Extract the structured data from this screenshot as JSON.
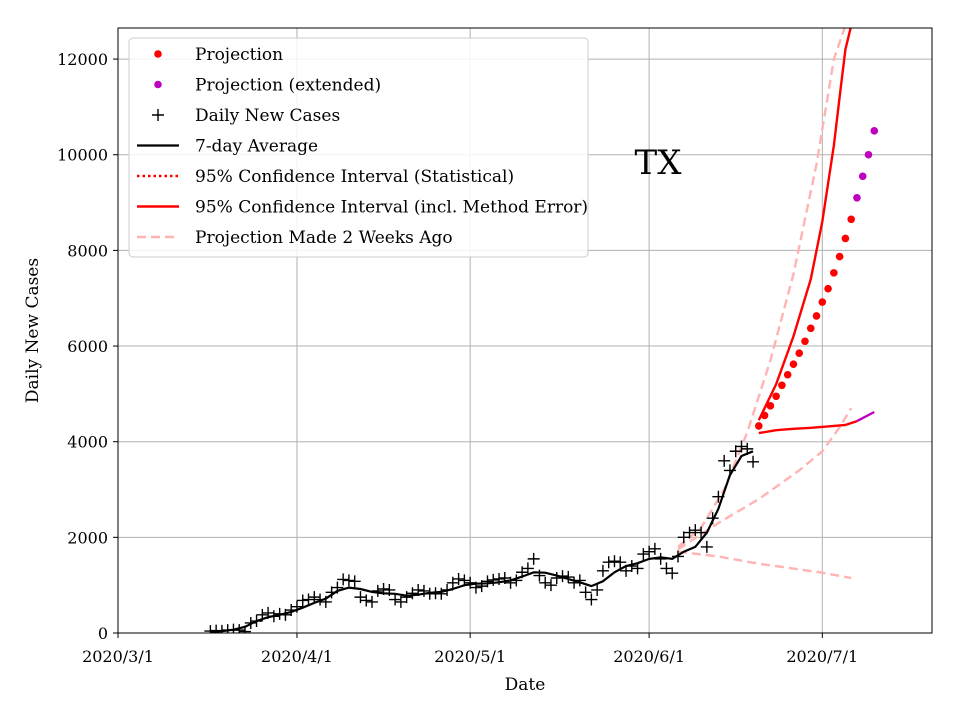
{
  "chart_data": {
    "type": "line",
    "annotation": "TX",
    "xlabel": "Date",
    "ylabel": "Daily New Cases",
    "x_ticks": [
      "2020/3/1",
      "2020/4/1",
      "2020/5/1",
      "2020/6/1",
      "2020/7/1"
    ],
    "y_ticks": [
      0,
      2000,
      4000,
      6000,
      8000,
      10000,
      12000
    ],
    "xlim": [
      "2020-03-01",
      "2020-07-20"
    ],
    "ylim": [
      0,
      12650
    ],
    "grid": true,
    "legend_position": "top-left",
    "legend": [
      {
        "label": "Projection",
        "style": "red-dot"
      },
      {
        "label": "Projection (extended)",
        "style": "magenta-dot"
      },
      {
        "label": "Daily New Cases",
        "style": "black-plus"
      },
      {
        "label": "7-day Average",
        "style": "black-line"
      },
      {
        "label": "95% Confidence Interval (Statistical)",
        "style": "red-dotted"
      },
      {
        "label": "95% Confidence Interval (incl. Method Error)",
        "style": "red-solid"
      },
      {
        "label": "Projection Made 2 Weeks Ago",
        "style": "pink-dashed"
      }
    ],
    "colors": {
      "projection": "#ff0000",
      "projection_extended": "#bf00bf",
      "daily": "#000000",
      "average": "#000000",
      "ci": "#ff0000",
      "old_projection": "#ffb3b3"
    },
    "series": [
      {
        "name": "Daily New Cases",
        "points": [
          [
            "2020-03-17",
            40
          ],
          [
            "2020-03-18",
            50
          ],
          [
            "2020-03-19",
            45
          ],
          [
            "2020-03-20",
            60
          ],
          [
            "2020-03-21",
            70
          ],
          [
            "2020-03-22",
            60
          ],
          [
            "2020-03-23",
            30
          ],
          [
            "2020-03-24",
            210
          ],
          [
            "2020-03-25",
            250
          ],
          [
            "2020-03-26",
            380
          ],
          [
            "2020-03-27",
            420
          ],
          [
            "2020-03-28",
            350
          ],
          [
            "2020-03-29",
            400
          ],
          [
            "2020-03-30",
            380
          ],
          [
            "2020-03-31",
            480
          ],
          [
            "2020-04-01",
            550
          ],
          [
            "2020-04-02",
            680
          ],
          [
            "2020-04-03",
            700
          ],
          [
            "2020-04-04",
            750
          ],
          [
            "2020-04-05",
            700
          ],
          [
            "2020-04-06",
            650
          ],
          [
            "2020-04-07",
            850
          ],
          [
            "2020-04-08",
            950
          ],
          [
            "2020-04-09",
            1120
          ],
          [
            "2020-04-10",
            1100
          ],
          [
            "2020-04-11",
            1080
          ],
          [
            "2020-04-12",
            750
          ],
          [
            "2020-04-13",
            680
          ],
          [
            "2020-04-14",
            650
          ],
          [
            "2020-04-15",
            880
          ],
          [
            "2020-04-16",
            920
          ],
          [
            "2020-04-17",
            900
          ],
          [
            "2020-04-18",
            700
          ],
          [
            "2020-04-19",
            650
          ],
          [
            "2020-04-20",
            750
          ],
          [
            "2020-04-21",
            830
          ],
          [
            "2020-04-22",
            900
          ],
          [
            "2020-04-23",
            880
          ],
          [
            "2020-04-24",
            820
          ],
          [
            "2020-04-25",
            830
          ],
          [
            "2020-04-26",
            820
          ],
          [
            "2020-04-27",
            900
          ],
          [
            "2020-04-28",
            1050
          ],
          [
            "2020-04-29",
            1130
          ],
          [
            "2020-04-30",
            1100
          ],
          [
            "2020-05-01",
            1050
          ],
          [
            "2020-05-02",
            950
          ],
          [
            "2020-05-03",
            980
          ],
          [
            "2020-05-04",
            1080
          ],
          [
            "2020-05-05",
            1110
          ],
          [
            "2020-05-06",
            1130
          ],
          [
            "2020-05-07",
            1150
          ],
          [
            "2020-05-08",
            1050
          ],
          [
            "2020-05-09",
            1100
          ],
          [
            "2020-05-10",
            1270
          ],
          [
            "2020-05-11",
            1350
          ],
          [
            "2020-05-12",
            1550
          ],
          [
            "2020-05-13",
            1200
          ],
          [
            "2020-05-14",
            1050
          ],
          [
            "2020-05-15",
            1000
          ],
          [
            "2020-05-16",
            1150
          ],
          [
            "2020-05-17",
            1190
          ],
          [
            "2020-05-18",
            1170
          ],
          [
            "2020-05-19",
            1050
          ],
          [
            "2020-05-20",
            1100
          ],
          [
            "2020-05-21",
            850
          ],
          [
            "2020-05-22",
            700
          ],
          [
            "2020-05-23",
            900
          ],
          [
            "2020-05-24",
            1300
          ],
          [
            "2020-05-25",
            1480
          ],
          [
            "2020-05-26",
            1500
          ],
          [
            "2020-05-27",
            1480
          ],
          [
            "2020-05-28",
            1300
          ],
          [
            "2020-05-29",
            1400
          ],
          [
            "2020-05-30",
            1350
          ],
          [
            "2020-05-31",
            1650
          ],
          [
            "2020-06-01",
            1700
          ],
          [
            "2020-06-02",
            1760
          ],
          [
            "2020-06-03",
            1550
          ],
          [
            "2020-06-04",
            1350
          ],
          [
            "2020-06-05",
            1250
          ],
          [
            "2020-06-06",
            1600
          ],
          [
            "2020-06-07",
            2000
          ],
          [
            "2020-06-08",
            2100
          ],
          [
            "2020-06-09",
            2150
          ],
          [
            "2020-06-10",
            2100
          ],
          [
            "2020-06-11",
            1800
          ],
          [
            "2020-06-12",
            2400
          ],
          [
            "2020-06-13",
            2850
          ],
          [
            "2020-06-14",
            3600
          ],
          [
            "2020-06-15",
            3400
          ],
          [
            "2020-06-16",
            3800
          ],
          [
            "2020-06-17",
            3900
          ],
          [
            "2020-06-18",
            3850
          ],
          [
            "2020-06-19",
            3580
          ]
        ]
      },
      {
        "name": "7-day Average",
        "points": [
          [
            "2020-03-17",
            20
          ],
          [
            "2020-03-19",
            40
          ],
          [
            "2020-03-21",
            70
          ],
          [
            "2020-03-23",
            130
          ],
          [
            "2020-03-25",
            250
          ],
          [
            "2020-03-27",
            330
          ],
          [
            "2020-03-29",
            380
          ],
          [
            "2020-03-31",
            440
          ],
          [
            "2020-04-02",
            530
          ],
          [
            "2020-04-04",
            630
          ],
          [
            "2020-04-06",
            720
          ],
          [
            "2020-04-08",
            880
          ],
          [
            "2020-04-10",
            950
          ],
          [
            "2020-04-12",
            920
          ],
          [
            "2020-04-14",
            860
          ],
          [
            "2020-04-16",
            830
          ],
          [
            "2020-04-18",
            820
          ],
          [
            "2020-04-20",
            780
          ],
          [
            "2020-04-22",
            800
          ],
          [
            "2020-04-24",
            840
          ],
          [
            "2020-04-26",
            860
          ],
          [
            "2020-04-28",
            920
          ],
          [
            "2020-04-30",
            1000
          ],
          [
            "2020-05-02",
            1030
          ],
          [
            "2020-05-04",
            1040
          ],
          [
            "2020-05-06",
            1060
          ],
          [
            "2020-05-08",
            1100
          ],
          [
            "2020-05-10",
            1180
          ],
          [
            "2020-05-12",
            1270
          ],
          [
            "2020-05-14",
            1260
          ],
          [
            "2020-05-16",
            1200
          ],
          [
            "2020-05-18",
            1130
          ],
          [
            "2020-05-20",
            1060
          ],
          [
            "2020-05-22",
            980
          ],
          [
            "2020-05-24",
            1080
          ],
          [
            "2020-05-26",
            1270
          ],
          [
            "2020-05-28",
            1400
          ],
          [
            "2020-05-30",
            1460
          ],
          [
            "2020-06-01",
            1550
          ],
          [
            "2020-06-03",
            1580
          ],
          [
            "2020-06-05",
            1550
          ],
          [
            "2020-06-07",
            1700
          ],
          [
            "2020-06-09",
            1800
          ],
          [
            "2020-06-11",
            2100
          ],
          [
            "2020-06-13",
            2600
          ],
          [
            "2020-06-15",
            3300
          ],
          [
            "2020-06-17",
            3700
          ],
          [
            "2020-06-19",
            3800
          ]
        ]
      },
      {
        "name": "Projection",
        "points": [
          [
            "2020-06-20",
            4330
          ],
          [
            "2020-06-21",
            4550
          ],
          [
            "2020-06-22",
            4750
          ],
          [
            "2020-06-23",
            4950
          ],
          [
            "2020-06-24",
            5180
          ],
          [
            "2020-06-25",
            5400
          ],
          [
            "2020-06-26",
            5620
          ],
          [
            "2020-06-27",
            5850
          ],
          [
            "2020-06-28",
            6100
          ],
          [
            "2020-06-29",
            6370
          ],
          [
            "2020-06-30",
            6630
          ],
          [
            "2020-07-01",
            6920
          ],
          [
            "2020-07-02",
            7200
          ],
          [
            "2020-07-03",
            7530
          ],
          [
            "2020-07-04",
            7870
          ],
          [
            "2020-07-05",
            8250
          ],
          [
            "2020-07-06",
            8650
          ]
        ]
      },
      {
        "name": "Projection (extended)",
        "points": [
          [
            "2020-07-07",
            9100
          ],
          [
            "2020-07-08",
            9550
          ],
          [
            "2020-07-09",
            10000
          ],
          [
            "2020-07-10",
            10500
          ]
        ]
      },
      {
        "name": "95% Confidence Interval (incl. Method Error) upper",
        "points": [
          [
            "2020-06-20",
            4450
          ],
          [
            "2020-06-23",
            5200
          ],
          [
            "2020-06-26",
            6200
          ],
          [
            "2020-06-29",
            7400
          ],
          [
            "2020-07-01",
            8600
          ],
          [
            "2020-07-03",
            10200
          ],
          [
            "2020-07-04",
            11200
          ],
          [
            "2020-07-05",
            12200
          ],
          [
            "2020-07-06",
            12700
          ]
        ]
      },
      {
        "name": "95% Confidence Interval (incl. Method Error) lower",
        "points": [
          [
            "2020-06-20",
            4180
          ],
          [
            "2020-06-23",
            4240
          ],
          [
            "2020-06-26",
            4270
          ],
          [
            "2020-06-29",
            4290
          ],
          [
            "2020-07-02",
            4320
          ],
          [
            "2020-07-05",
            4350
          ],
          [
            "2020-07-07",
            4430
          ]
        ]
      },
      {
        "name": "Lower bound (extended)",
        "points": [
          [
            "2020-07-07",
            4430
          ],
          [
            "2020-07-10",
            4620
          ]
        ]
      },
      {
        "name": "Projection Made 2 Weeks Ago",
        "lines": [
          [
            [
              "2020-06-06",
              1800
            ],
            [
              "2020-06-10",
              2200
            ],
            [
              "2020-06-14",
              3000
            ],
            [
              "2020-06-18",
              4200
            ],
            [
              "2020-06-22",
              5700
            ],
            [
              "2020-06-26",
              7500
            ],
            [
              "2020-06-30",
              9800
            ],
            [
              "2020-07-03",
              12000
            ],
            [
              "2020-07-05",
              12700
            ]
          ],
          [
            [
              "2020-06-06",
              1750
            ],
            [
              "2020-06-13",
              2300
            ],
            [
              "2020-06-20",
              2800
            ],
            [
              "2020-06-27",
              3400
            ],
            [
              "2020-07-01",
              3800
            ],
            [
              "2020-07-04",
              4300
            ],
            [
              "2020-07-06",
              4700
            ]
          ],
          [
            [
              "2020-06-06",
              1700
            ],
            [
              "2020-06-13",
              1600
            ],
            [
              "2020-06-20",
              1450
            ],
            [
              "2020-06-27",
              1330
            ],
            [
              "2020-07-01",
              1260
            ],
            [
              "2020-07-06",
              1150
            ]
          ]
        ]
      }
    ]
  }
}
